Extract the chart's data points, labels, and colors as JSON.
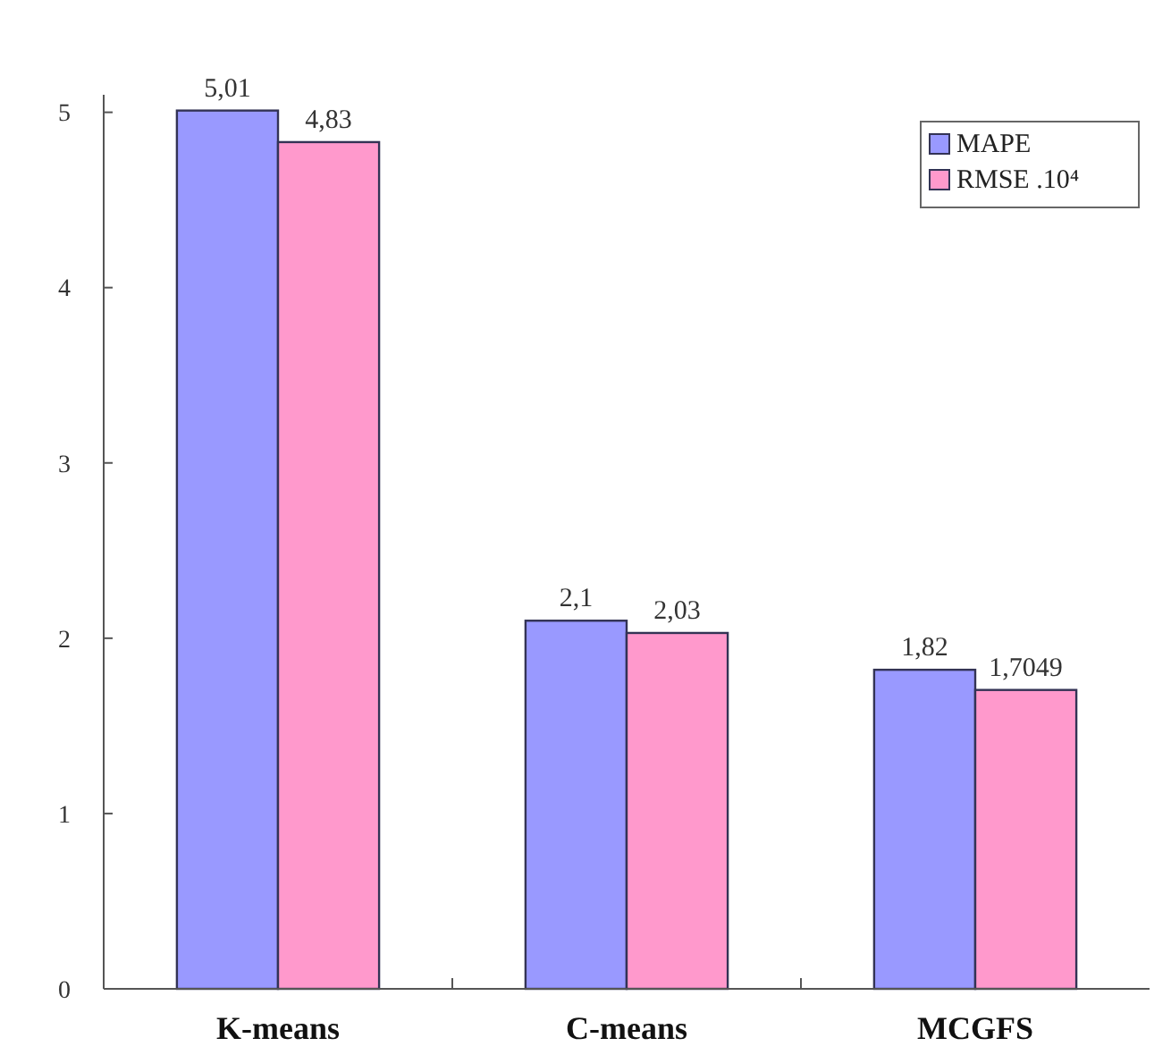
{
  "chart_data": {
    "type": "bar",
    "categories": [
      "K-means",
      "C-means",
      "MCGFS"
    ],
    "series": [
      {
        "name": "MAPE",
        "color": "#9999ff",
        "values": [
          5.01,
          2.1,
          1.82
        ],
        "value_labels": [
          "5,01",
          "2,1",
          "1,82"
        ]
      },
      {
        "name": "RMSE .10⁴",
        "color": "#ff99cc",
        "values": [
          4.83,
          2.03,
          1.7049
        ],
        "value_labels": [
          "4,83",
          "2,03",
          "1,7049"
        ]
      }
    ],
    "ylim": [
      0,
      5.1
    ],
    "yticks": [
      0,
      1,
      2,
      3,
      4,
      5
    ],
    "grid": false,
    "legend": "top right"
  }
}
